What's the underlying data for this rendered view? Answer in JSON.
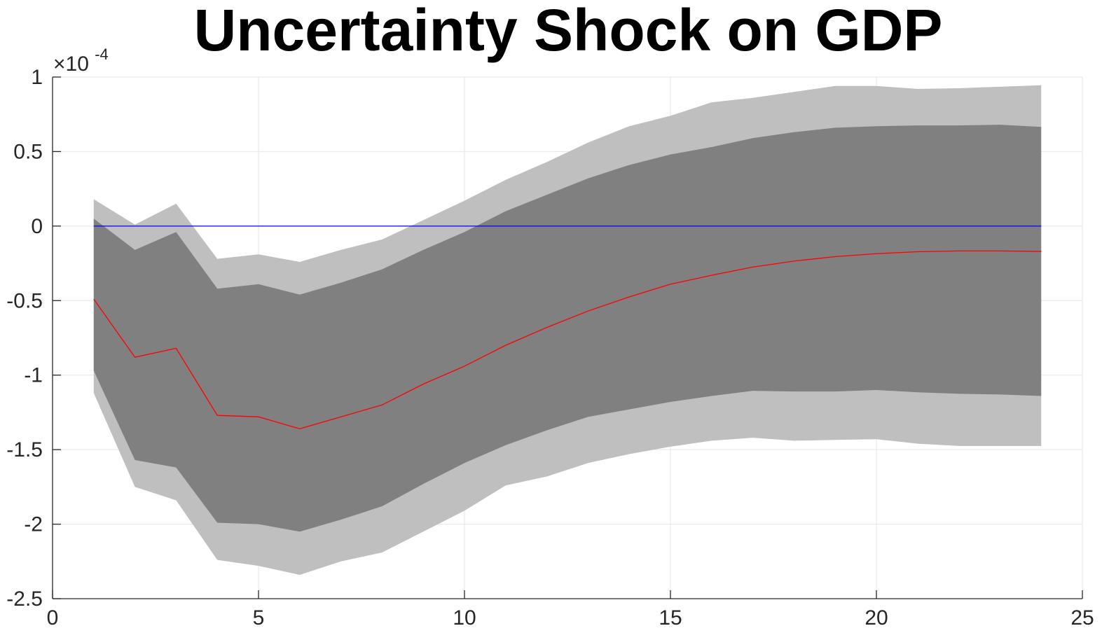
{
  "chart_data": {
    "type": "area",
    "title": "Uncertainty Shock on GDP",
    "xlabel": "",
    "ylabel": "",
    "y_multiplier_base": "×10",
    "y_multiplier_exponent": "-4",
    "xlim": [
      0,
      25
    ],
    "ylim": [
      -2.5,
      1
    ],
    "grid": true,
    "x_ticks": [
      0,
      5,
      10,
      15,
      20,
      25
    ],
    "y_ticks": [
      -2.5,
      -2,
      -1.5,
      -1,
      -0.5,
      0,
      0.5,
      1
    ],
    "x_tick_labels": [
      "0",
      "5",
      "10",
      "15",
      "20",
      "25"
    ],
    "y_tick_labels": [
      "-2.5",
      "-2",
      "-1.5",
      "-1",
      "-0.5",
      "0",
      "0.5",
      "1"
    ],
    "x": [
      1,
      2,
      3,
      4,
      5,
      6,
      7,
      8,
      9,
      10,
      11,
      12,
      13,
      14,
      15,
      16,
      17,
      18,
      19,
      20,
      21,
      22,
      23,
      24
    ],
    "series": [
      {
        "kind": "band",
        "color": "#bfbfbf",
        "upper": [
          0.18,
          0.01,
          0.15,
          -0.22,
          -0.19,
          -0.24,
          -0.16,
          -0.09,
          0.04,
          0.17,
          0.31,
          0.43,
          0.56,
          0.67,
          0.74,
          0.83,
          0.86,
          0.9,
          0.94,
          0.94,
          0.92,
          0.925,
          0.935,
          0.945
        ],
        "lower": [
          -1.12,
          -1.75,
          -1.84,
          -2.24,
          -2.28,
          -2.34,
          -2.25,
          -2.19,
          -2.05,
          -1.91,
          -1.74,
          -1.68,
          -1.59,
          -1.53,
          -1.48,
          -1.44,
          -1.42,
          -1.44,
          -1.435,
          -1.43,
          -1.46,
          -1.475,
          -1.475,
          -1.475
        ]
      },
      {
        "kind": "band",
        "color": "#808080",
        "upper": [
          0.05,
          -0.16,
          -0.04,
          -0.42,
          -0.39,
          -0.46,
          -0.38,
          -0.29,
          -0.16,
          -0.04,
          0.1,
          0.21,
          0.32,
          0.41,
          0.48,
          0.53,
          0.59,
          0.63,
          0.66,
          0.67,
          0.675,
          0.675,
          0.68,
          0.665
        ],
        "lower": [
          -0.97,
          -1.57,
          -1.62,
          -1.99,
          -2.0,
          -2.05,
          -1.97,
          -1.88,
          -1.73,
          -1.59,
          -1.47,
          -1.37,
          -1.28,
          -1.23,
          -1.18,
          -1.14,
          -1.105,
          -1.11,
          -1.11,
          -1.1,
          -1.115,
          -1.125,
          -1.13,
          -1.14
        ]
      },
      {
        "kind": "line",
        "color": "#ff0000",
        "values": [
          -0.49,
          -0.88,
          -0.82,
          -1.27,
          -1.28,
          -1.36,
          -1.28,
          -1.2,
          -1.06,
          -0.94,
          -0.8,
          -0.68,
          -0.57,
          -0.475,
          -0.39,
          -0.33,
          -0.275,
          -0.235,
          -0.205,
          -0.185,
          -0.172,
          -0.167,
          -0.167,
          -0.17
        ]
      },
      {
        "kind": "line",
        "color": "#0000ff",
        "values": [
          0,
          0,
          0,
          0,
          0,
          0,
          0,
          0,
          0,
          0,
          0,
          0,
          0,
          0,
          0,
          0,
          0,
          0,
          0,
          0,
          0,
          0,
          0,
          0
        ]
      }
    ]
  }
}
